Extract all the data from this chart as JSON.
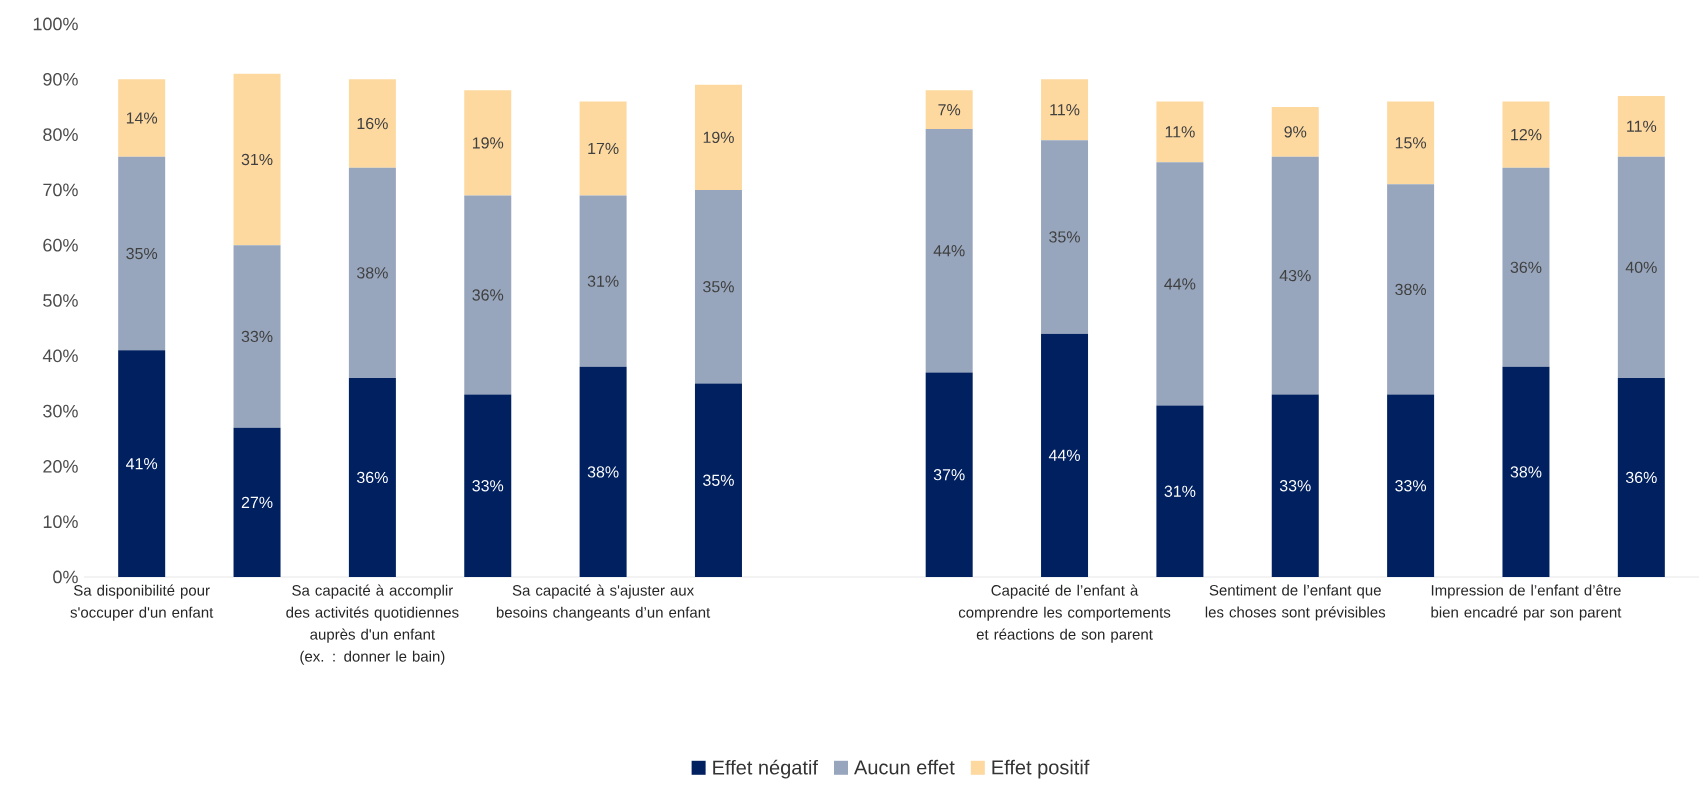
{
  "chart_data": {
    "type": "bar",
    "stacked": true,
    "legend": "bottom",
    "categories": [
      "Sa disponibilité pour s'occuper d'un enfant",
      null,
      "Sa capacité à accomplir des activités quotidiennes auprès d'un enfant (ex. : donner le bain)",
      null,
      "Sa capacité à s'ajuster aux besoins changeants d’un enfant",
      null,
      null,
      null,
      "Capacité de l’enfant à comprendre les comportements et réactions de son parent",
      null,
      "Sentiment de l’enfant que les choses sont prévisibles",
      null,
      "Impression de l’enfant d’être bien encadré par son parent",
      null
    ],
    "series": [
      {
        "name": "Effet négatif",
        "color": "#002060",
        "values": [
          41,
          27,
          36,
          33,
          38,
          35,
          null,
          37,
          44,
          31,
          33,
          33,
          38,
          36
        ],
        "value_labels": [
          "41%",
          "27%",
          "36%",
          "33%",
          "38%",
          "35%",
          null,
          "37%",
          "44%",
          "31%",
          "33%",
          "33%",
          "38%",
          "36%"
        ]
      },
      {
        "name": "Aucun effet",
        "color": "#97a6bd",
        "values": [
          35,
          33,
          38,
          36,
          31,
          35,
          null,
          44,
          35,
          44,
          43,
          38,
          36,
          40
        ],
        "value_labels": [
          "35%",
          "33%",
          "38%",
          "36%",
          "31%",
          "35%",
          null,
          "44%",
          "35%",
          "44%",
          "43%",
          "38%",
          "36%",
          "40%"
        ]
      },
      {
        "name": "Effet positif",
        "color": "#fdd9a0",
        "values": [
          14,
          31,
          16,
          19,
          17,
          19,
          null,
          7,
          11,
          11,
          9,
          15,
          12,
          11
        ],
        "value_labels": [
          "14%",
          "31%",
          "16%",
          "19%",
          "17%",
          "19%",
          null,
          "7%",
          "11%",
          "11%",
          "9%",
          "15%",
          "12%",
          "11%"
        ]
      }
    ],
    "ylim": [
      0,
      100
    ],
    "yticks": [
      {
        "value": 0,
        "label": "0%"
      },
      {
        "value": 10,
        "label": "10%"
      },
      {
        "value": 20,
        "label": "20%"
      },
      {
        "value": 30,
        "label": "30%"
      },
      {
        "value": 40,
        "label": "40%"
      },
      {
        "value": 50,
        "label": "50%"
      },
      {
        "value": 60,
        "label": "60%"
      },
      {
        "value": 70,
        "label": "70%"
      },
      {
        "value": 80,
        "label": "80%"
      },
      {
        "value": 90,
        "label": "90%"
      },
      {
        "value": 100,
        "label": "100%"
      }
    ]
  }
}
